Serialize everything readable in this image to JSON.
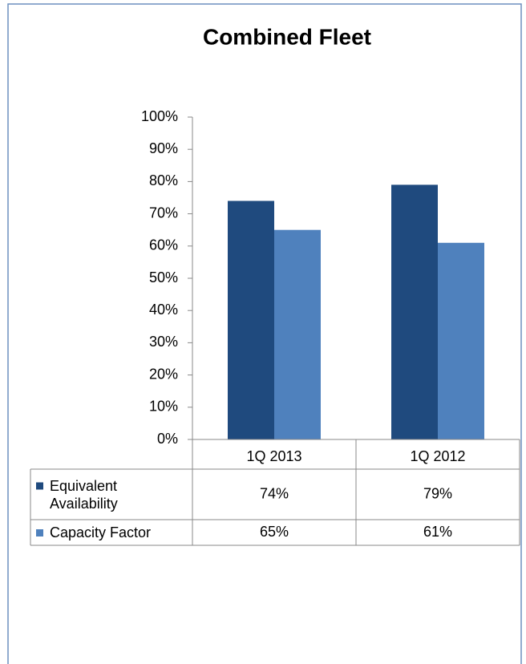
{
  "chart_data": {
    "type": "bar",
    "title": "Combined Fleet",
    "categories": [
      "1Q 2013",
      "1Q 2012"
    ],
    "series": [
      {
        "name": "Equivalent Availability",
        "color": "#1f4a7e",
        "values": [
          74,
          79
        ],
        "value_labels": [
          "74%",
          "79%"
        ]
      },
      {
        "name": "Capacity Factor",
        "color": "#4f81bd",
        "values": [
          65,
          61
        ],
        "value_labels": [
          "65%",
          "61%"
        ]
      }
    ],
    "ylim": [
      0,
      100
    ],
    "yticks": [
      {
        "value": 0,
        "label": "0%"
      },
      {
        "value": 10,
        "label": "10%"
      },
      {
        "value": 20,
        "label": "20%"
      },
      {
        "value": 30,
        "label": "30%"
      },
      {
        "value": 40,
        "label": "40%"
      },
      {
        "value": 50,
        "label": "50%"
      },
      {
        "value": 60,
        "label": "60%"
      },
      {
        "value": 70,
        "label": "70%"
      },
      {
        "value": 80,
        "label": "80%"
      },
      {
        "value": 90,
        "label": "90%"
      },
      {
        "value": 100,
        "label": "100%"
      }
    ],
    "grid": false,
    "legend": "table"
  }
}
